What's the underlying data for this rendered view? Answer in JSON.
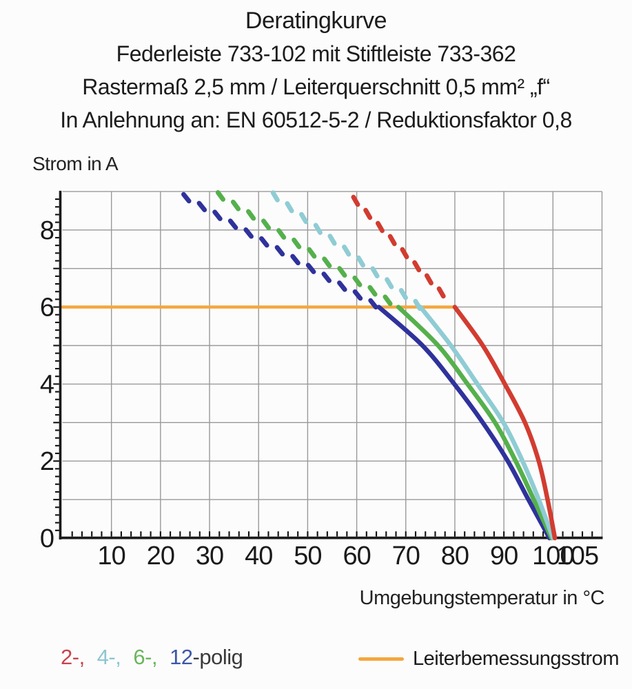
{
  "title_block": {
    "line1": "Deratingkurve",
    "line2": "Federleiste 733-102 mit Stiftleiste 733-362",
    "line3": "Rastermaß 2,5 mm / Leiterquerschnitt 0,5 mm² „f“",
    "line4": "In Anlehnung an: EN 60512-5-2 / Reduktionsfaktor 0,8"
  },
  "chart_data": {
    "type": "line",
    "title": "Deratingkurve",
    "xlabel": "Umgebungstemperatur in °C",
    "ylabel": "Strom in A",
    "xlim": [
      0,
      110
    ],
    "ylim": [
      0,
      9
    ],
    "grid": "on",
    "grid_step_x": 10,
    "grid_step_y": 1,
    "x_minor_tick_step": 2,
    "y_minor_tick_step": 0.2,
    "x_tick_labels": [
      10,
      20,
      30,
      40,
      50,
      60,
      70,
      80,
      90,
      100,
      105
    ],
    "y_tick_labels": [
      0,
      2,
      4,
      6,
      8
    ],
    "reference_line": {
      "label": "Leiterbemessungsstrom",
      "y": 6,
      "x_start": 0,
      "x_end": 80,
      "color": "#f3a73e"
    },
    "series": [
      {
        "name": "12-polig",
        "poles": 12,
        "color": "#2f329b",
        "dashed_segment": [
          [
            24.4,
            8.9
          ],
          [
            64.5,
            6
          ]
        ],
        "solid_points": [
          [
            64.5,
            6
          ],
          [
            73.4,
            5
          ],
          [
            79.9,
            4
          ],
          [
            85.7,
            3
          ],
          [
            90.8,
            2
          ],
          [
            95.0,
            1
          ],
          [
            99.3,
            0
          ]
        ]
      },
      {
        "name": "6-polig",
        "poles": 6,
        "color": "#55b04c",
        "dashed_segment": [
          [
            31.4,
            8.95
          ],
          [
            68.5,
            6
          ]
        ],
        "solid_points": [
          [
            68.5,
            6
          ],
          [
            76.6,
            5
          ],
          [
            82.6,
            4
          ],
          [
            88.2,
            3
          ],
          [
            92.4,
            2
          ],
          [
            96.1,
            1
          ],
          [
            99.7,
            0
          ]
        ]
      },
      {
        "name": "4-polig",
        "poles": 4,
        "color": "#8fccd4",
        "dashed_segment": [
          [
            42.6,
            8.95
          ],
          [
            73.0,
            6
          ]
        ],
        "solid_points": [
          [
            73.0,
            6
          ],
          [
            79.2,
            5
          ],
          [
            84.6,
            4
          ],
          [
            89.9,
            3
          ],
          [
            93.8,
            2
          ],
          [
            97.1,
            1
          ],
          [
            100.0,
            0
          ]
        ]
      },
      {
        "name": "2-polig",
        "poles": 2,
        "color": "#d23c30",
        "dashed_segment": [
          [
            59.1,
            8.85
          ],
          [
            80.0,
            6
          ]
        ],
        "solid_points": [
          [
            80.0,
            6
          ],
          [
            85.7,
            5
          ],
          [
            90.2,
            4
          ],
          [
            94.3,
            3
          ],
          [
            97.1,
            2
          ],
          [
            98.9,
            1
          ],
          [
            100.4,
            0
          ]
        ]
      }
    ],
    "axis_color": "#1a1a1a",
    "grid_color": "#999999",
    "tick_label_font_px": 38
  },
  "legend": {
    "items": [
      {
        "label": "2-,",
        "color": "#c8434e"
      },
      {
        "label": "4-,",
        "color": "#8ec5d1"
      },
      {
        "label": "6-,",
        "color": "#6cb55f"
      },
      {
        "label": "12",
        "color": "#3c57a8"
      },
      {
        "label": "-polig",
        "color": "#3a3a3a"
      }
    ],
    "reference": {
      "label": "Leiterbemessungsstrom",
      "swatch_color": "#f3a73e"
    }
  }
}
